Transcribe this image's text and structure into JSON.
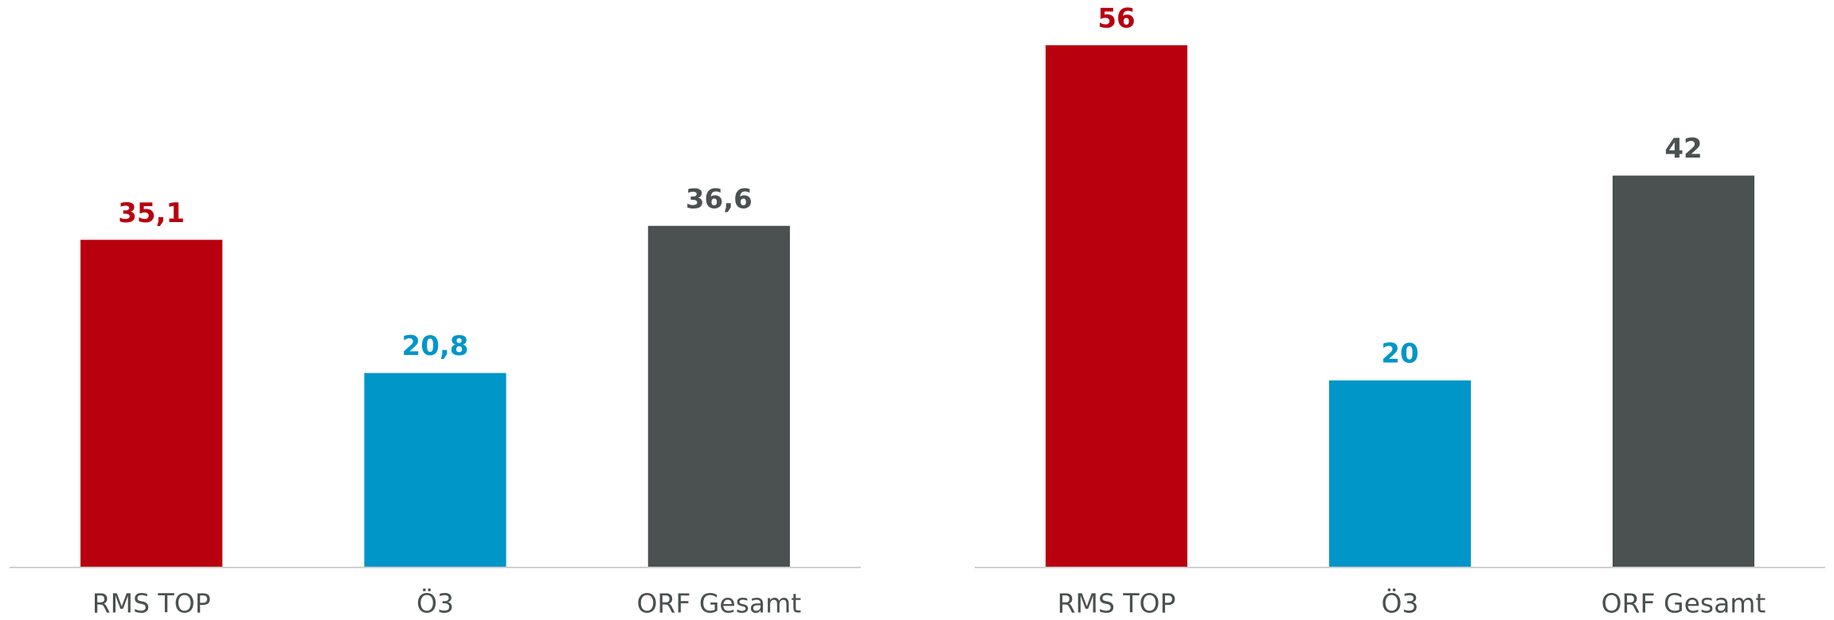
{
  "chart_data": [
    {
      "type": "bar",
      "categories": [
        "RMS TOP",
        "Ö3",
        "ORF Gesamt"
      ],
      "values": [
        35.1,
        20.8,
        36.6
      ],
      "value_labels": [
        "35,1",
        "20,8",
        "36,6"
      ],
      "colors": [
        "#b8000f",
        "#0096c8",
        "#4a5150"
      ],
      "ylim": [
        0,
        60
      ]
    },
    {
      "type": "bar",
      "categories": [
        "RMS TOP",
        "Ö3",
        "ORF Gesamt"
      ],
      "values": [
        56,
        20,
        42
      ],
      "colors": [
        "#b8000f",
        "#0096c8",
        "#4a5150"
      ],
      "ylim": [
        0,
        60
      ]
    }
  ]
}
